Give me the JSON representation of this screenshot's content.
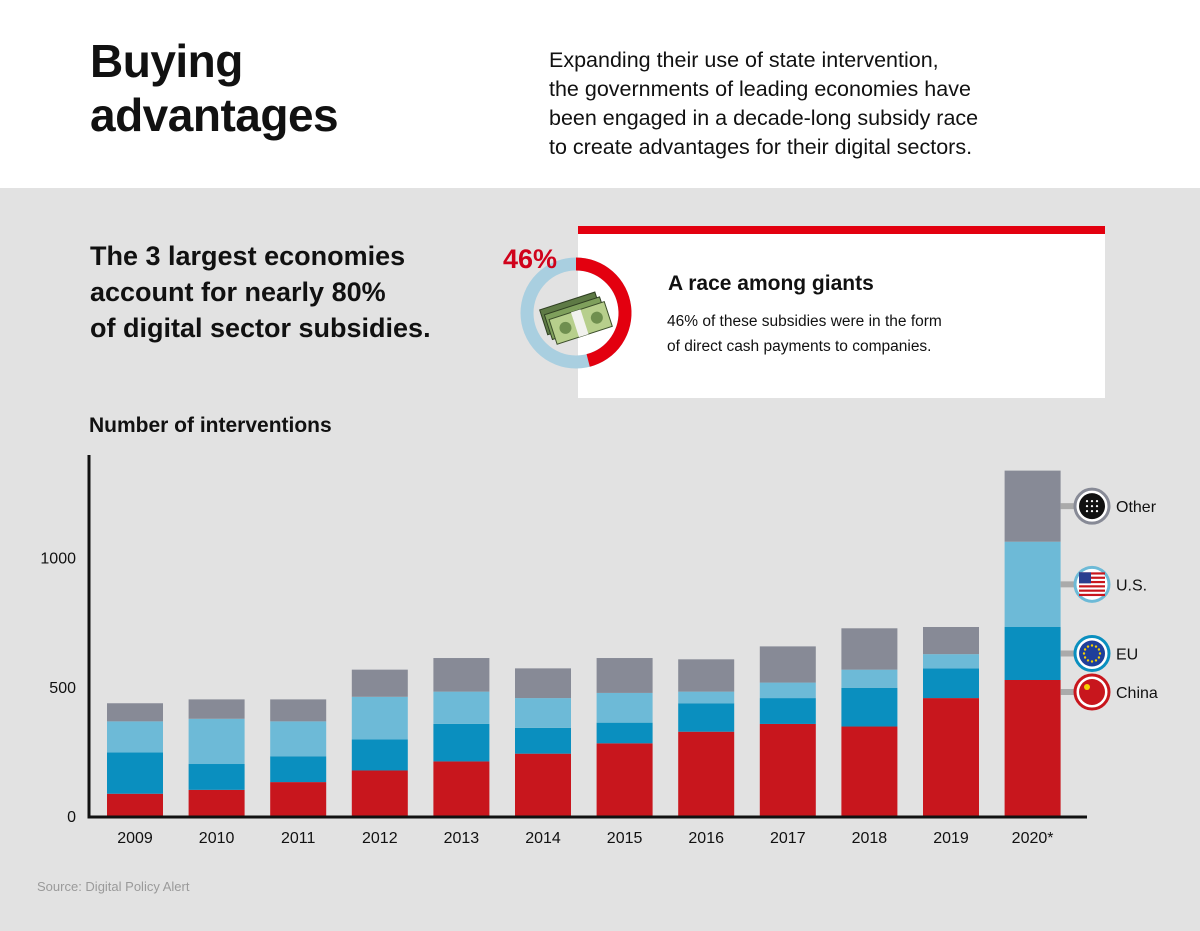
{
  "header": {
    "title_lines": [
      "Buying",
      "advantages"
    ],
    "intro_lines": [
      "Expanding their use of state intervention,",
      "the governments of leading economies have",
      "been engaged in a decade-long subsidy race",
      "to create advantages for their digital sectors."
    ]
  },
  "headline_lines": [
    "The 3 largest economies",
    "account for nearly 80%",
    "of digital sector subsidies."
  ],
  "card": {
    "percent_label": "46%",
    "percent_value": 46,
    "title": "A race among giants",
    "text_lines": [
      "46% of these subsidies were in the form",
      "of direct cash payments to companies."
    ],
    "icon": "money-stack-icon"
  },
  "colors": {
    "china": "#c8161d",
    "eu": "#0a8fbf",
    "us": "#6dbad7",
    "other": "#878a96",
    "accent": "#e3000f",
    "donut_track": "#a9cfe0"
  },
  "chart_data": {
    "type": "bar",
    "stacked": true,
    "title": "Number of interventions",
    "categories": [
      "2009",
      "2010",
      "2011",
      "2012",
      "2013",
      "2014",
      "2015",
      "2016",
      "2017",
      "2018",
      "2019",
      "2020*"
    ],
    "series": [
      {
        "name": "China",
        "icon": "china-flag-icon",
        "values": [
          90,
          105,
          135,
          180,
          215,
          245,
          285,
          330,
          360,
          350,
          460,
          530
        ]
      },
      {
        "name": "EU",
        "icon": "eu-flag-icon",
        "values": [
          160,
          100,
          100,
          120,
          145,
          100,
          80,
          110,
          100,
          150,
          115,
          205
        ]
      },
      {
        "name": "U.S.",
        "icon": "us-flag-icon",
        "values": [
          120,
          175,
          135,
          165,
          125,
          115,
          115,
          45,
          60,
          70,
          55,
          330
        ]
      },
      {
        "name": "Other",
        "icon": "other-grid-icon",
        "values": [
          70,
          75,
          85,
          105,
          130,
          115,
          135,
          125,
          140,
          160,
          105,
          275
        ]
      }
    ],
    "yticks": [
      0,
      500,
      1000
    ],
    "ylim": [
      0,
      1400
    ],
    "legend_position": "right",
    "grid": false
  },
  "source": "Source: Digital Policy Alert"
}
